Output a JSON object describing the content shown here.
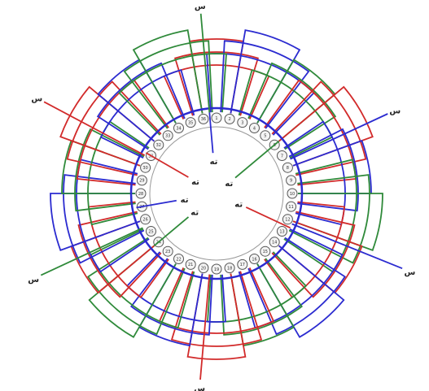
{
  "diagram": {
    "slot_count": 36,
    "colors": {
      "phase_red": "#d22a2a",
      "phase_green": "#2f8a3a",
      "phase_blue": "#2b2bd0",
      "slot": "#555555"
    },
    "terminals": {
      "start_label": "س",
      "end_label": "ته",
      "starts": [
        {
          "phase": "phase_red",
          "label": "س"
        },
        {
          "phase": "phase_green",
          "label": "س"
        },
        {
          "phase": "phase_blue",
          "label": "س"
        },
        {
          "phase": "phase_red",
          "label": "س"
        },
        {
          "phase": "phase_green",
          "label": "س"
        },
        {
          "phase": "phase_blue",
          "label": "س"
        }
      ],
      "ends": [
        {
          "phase": "phase_red",
          "label": "ته"
        },
        {
          "phase": "phase_green",
          "label": "ته"
        },
        {
          "phase": "phase_blue",
          "label": "ته"
        },
        {
          "phase": "phase_red",
          "label": "ته"
        },
        {
          "phase": "phase_green",
          "label": "ته"
        },
        {
          "phase": "phase_blue",
          "label": "ته"
        }
      ]
    }
  }
}
